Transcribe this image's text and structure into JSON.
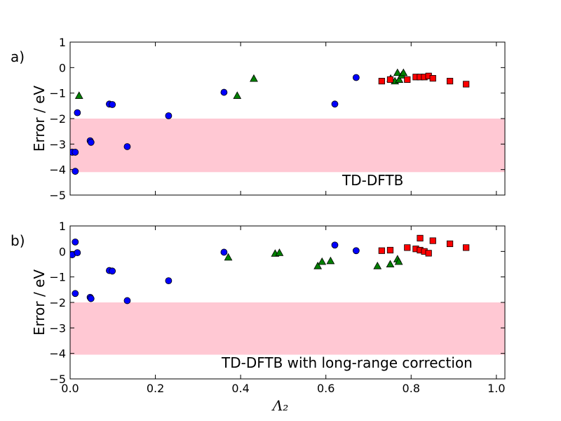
{
  "chart_data": [
    {
      "panel_label": "a)",
      "type": "scatter",
      "annotation": "TD-DFTB",
      "xlabel": "",
      "ylabel": "Error / eV",
      "xlim": [
        0.0,
        1.02
      ],
      "ylim": [
        -5,
        1
      ],
      "xticks": [
        0.0,
        0.2,
        0.4,
        0.6,
        0.8,
        1.0
      ],
      "xtick_labels": [
        "",
        "",
        "",
        "",
        "",
        ""
      ],
      "yticks": [
        -5,
        -4,
        -3,
        -2,
        -1,
        0,
        1
      ],
      "ytick_labels": [
        "−5",
        "−4",
        "−3",
        "−2",
        "−1",
        "0",
        "1"
      ],
      "band": {
        "y_low": -4.1,
        "y_high": -2.0,
        "color": "#ffc8d3"
      },
      "series": [
        {
          "name": "circles",
          "marker": "circle",
          "color": "#0000ff",
          "points": [
            [
              0.005,
              -3.32
            ],
            [
              0.012,
              -3.32
            ],
            [
              0.012,
              -4.07
            ],
            [
              0.017,
              -1.77
            ],
            [
              0.047,
              -2.87
            ],
            [
              0.049,
              -2.93
            ],
            [
              0.092,
              -1.43
            ],
            [
              0.099,
              -1.45
            ],
            [
              0.134,
              -3.1
            ],
            [
              0.231,
              -1.89
            ],
            [
              0.361,
              -0.97
            ],
            [
              0.621,
              -1.43
            ],
            [
              0.671,
              -0.39
            ]
          ]
        },
        {
          "name": "triangles",
          "marker": "triangle",
          "color": "#008000",
          "points": [
            [
              0.021,
              -1.1
            ],
            [
              0.392,
              -1.1
            ],
            [
              0.431,
              -0.43
            ],
            [
              0.752,
              -0.43
            ],
            [
              0.762,
              -0.53
            ],
            [
              0.768,
              -0.2
            ],
            [
              0.772,
              -0.47
            ],
            [
              0.778,
              -0.3
            ],
            [
              0.782,
              -0.2
            ]
          ]
        },
        {
          "name": "squares",
          "marker": "square",
          "color": "#ff0000",
          "points": [
            [
              0.731,
              -0.53
            ],
            [
              0.751,
              -0.47
            ],
            [
              0.791,
              -0.47
            ],
            [
              0.811,
              -0.37
            ],
            [
              0.821,
              -0.37
            ],
            [
              0.831,
              -0.37
            ],
            [
              0.841,
              -0.33
            ],
            [
              0.851,
              -0.42
            ],
            [
              0.891,
              -0.53
            ],
            [
              0.929,
              -0.65
            ]
          ]
        }
      ]
    },
    {
      "panel_label": "b)",
      "type": "scatter",
      "annotation": "TD-DFTB with long-range correction",
      "xlabel": "Λ₂",
      "ylabel": "Error / eV",
      "xlim": [
        0.0,
        1.02
      ],
      "ylim": [
        -5,
        1
      ],
      "xticks": [
        0.0,
        0.2,
        0.4,
        0.6,
        0.8,
        1.0
      ],
      "xtick_labels": [
        "0.0",
        "0.2",
        "0.4",
        "0.6",
        "0.8",
        "1.0"
      ],
      "yticks": [
        -5,
        -4,
        -3,
        -2,
        -1,
        0,
        1
      ],
      "ytick_labels": [
        "−5",
        "−4",
        "−3",
        "−2",
        "−1",
        "0",
        "1"
      ],
      "band": {
        "y_low": -4.05,
        "y_high": -2.0,
        "color": "#ffc8d3"
      },
      "series": [
        {
          "name": "circles",
          "marker": "circle",
          "color": "#0000ff",
          "points": [
            [
              0.005,
              -0.13
            ],
            [
              0.012,
              0.37
            ],
            [
              0.012,
              -1.65
            ],
            [
              0.017,
              -0.05
            ],
            [
              0.047,
              -1.8
            ],
            [
              0.049,
              -1.85
            ],
            [
              0.092,
              -0.75
            ],
            [
              0.099,
              -0.77
            ],
            [
              0.134,
              -1.93
            ],
            [
              0.231,
              -1.15
            ],
            [
              0.361,
              -0.03
            ],
            [
              0.621,
              0.25
            ],
            [
              0.671,
              0.03
            ]
          ]
        },
        {
          "name": "triangles",
          "marker": "triangle",
          "color": "#008000",
          "points": [
            [
              0.371,
              -0.23
            ],
            [
              0.481,
              -0.08
            ],
            [
              0.491,
              -0.05
            ],
            [
              0.581,
              -0.57
            ],
            [
              0.591,
              -0.4
            ],
            [
              0.611,
              -0.37
            ],
            [
              0.721,
              -0.57
            ],
            [
              0.751,
              -0.5
            ],
            [
              0.768,
              -0.3
            ],
            [
              0.771,
              -0.4
            ]
          ]
        },
        {
          "name": "squares",
          "marker": "square",
          "color": "#ff0000",
          "points": [
            [
              0.731,
              0.03
            ],
            [
              0.751,
              0.05
            ],
            [
              0.791,
              0.15
            ],
            [
              0.811,
              0.1
            ],
            [
              0.821,
              0.52
            ],
            [
              0.821,
              0.05
            ],
            [
              0.831,
              0.0
            ],
            [
              0.841,
              -0.07
            ],
            [
              0.851,
              0.42
            ],
            [
              0.891,
              0.3
            ],
            [
              0.929,
              0.15
            ]
          ]
        }
      ]
    }
  ]
}
